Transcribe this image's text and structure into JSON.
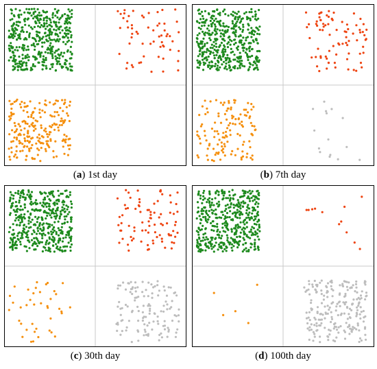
{
  "colors": {
    "green": "#1e8a1e",
    "red": "#ee4411",
    "orange": "#f5900f",
    "gray": "#bdbdbd",
    "divider": "#c8c8c8"
  },
  "chart_data": [
    {
      "type": "scatter",
      "panel_letter": "a",
      "caption": "1st day",
      "xlim": [
        0,
        2
      ],
      "ylim": [
        0,
        2
      ],
      "grid": "quadrant dividers at x=1 and y=1",
      "quadrant_point_counts": {
        "top_left": 460,
        "top_right": 60,
        "bottom_left": 220,
        "bottom_right": 0
      },
      "series": [
        {
          "group": "top-left",
          "color": "#1e8a1e",
          "count": 460
        },
        {
          "group": "top-right",
          "color": "#ee4411",
          "count": 60
        },
        {
          "group": "bottom-left",
          "color": "#f5900f",
          "count": 220
        },
        {
          "group": "bottom-right",
          "color": "#bdbdbd",
          "count": 0
        }
      ]
    },
    {
      "type": "scatter",
      "panel_letter": "b",
      "caption": "7th day",
      "xlim": [
        0,
        2
      ],
      "ylim": [
        0,
        2
      ],
      "grid": "quadrant dividers at x=1 and y=1",
      "quadrant_point_counts": {
        "top_left": 460,
        "top_right": 80,
        "bottom_left": 130,
        "bottom_right": 15
      },
      "series": [
        {
          "group": "top-left",
          "color": "#1e8a1e",
          "count": 460
        },
        {
          "group": "top-right",
          "color": "#ee4411",
          "count": 80
        },
        {
          "group": "bottom-left",
          "color": "#f5900f",
          "count": 130
        },
        {
          "group": "bottom-right",
          "color": "#bdbdbd",
          "count": 15
        }
      ]
    },
    {
      "type": "scatter",
      "panel_letter": "c",
      "caption": "30th day",
      "xlim": [
        0,
        2
      ],
      "ylim": [
        0,
        2
      ],
      "grid": "quadrant dividers at x=1 and y=1",
      "quadrant_point_counts": {
        "top_left": 460,
        "top_right": 85,
        "bottom_left": 40,
        "bottom_right": 130
      },
      "series": [
        {
          "group": "top-left",
          "color": "#1e8a1e",
          "count": 460
        },
        {
          "group": "top-right",
          "color": "#ee4411",
          "count": 85
        },
        {
          "group": "bottom-left",
          "color": "#f5900f",
          "count": 40
        },
        {
          "group": "bottom-right",
          "color": "#bdbdbd",
          "count": 130
        }
      ]
    },
    {
      "type": "scatter",
      "panel_letter": "d",
      "caption": "100th day",
      "xlim": [
        0,
        2
      ],
      "ylim": [
        0,
        2
      ],
      "grid": "quadrant dividers at x=1 and y=1",
      "quadrant_point_counts": {
        "top_left": 460,
        "top_right": 12,
        "bottom_left": 5,
        "bottom_right": 220
      },
      "series": [
        {
          "group": "top-left",
          "color": "#1e8a1e",
          "count": 460
        },
        {
          "group": "top-right",
          "color": "#ee4411",
          "count": 12
        },
        {
          "group": "bottom-left",
          "color": "#f5900f",
          "count": 5
        },
        {
          "group": "bottom-right",
          "color": "#bdbdbd",
          "count": 220
        }
      ]
    }
  ]
}
